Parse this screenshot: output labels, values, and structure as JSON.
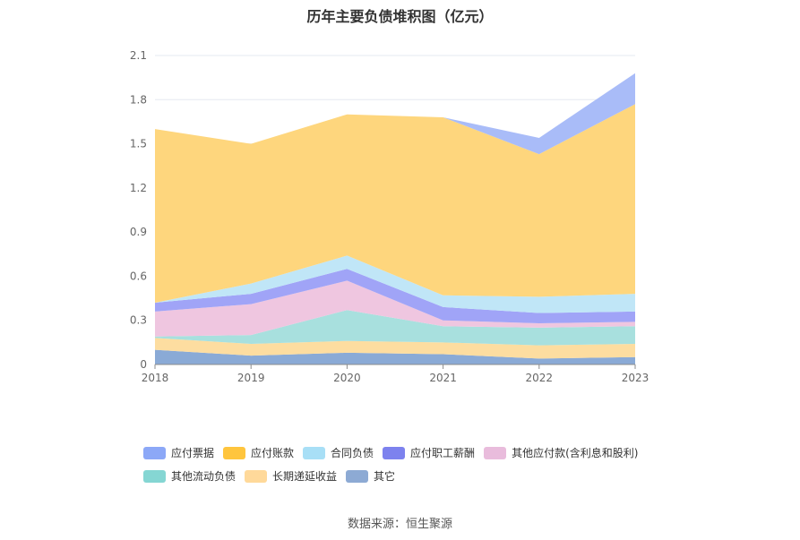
{
  "chart_data": {
    "type": "area",
    "stacked": true,
    "title": "历年主要负债堆积图（亿元）",
    "x": [
      "2018",
      "2019",
      "2020",
      "2021",
      "2022",
      "2023"
    ],
    "yticks": [
      "0",
      "0.3",
      "0.6",
      "0.9",
      "1.2",
      "1.5",
      "1.8",
      "2.1"
    ],
    "ylim": [
      0,
      2.1
    ],
    "series": [
      {
        "name": "其它",
        "color": "#8aaad6",
        "values": [
          0.1,
          0.06,
          0.08,
          0.07,
          0.04,
          0.05
        ]
      },
      {
        "name": "长期递延收益",
        "color": "#fddda0",
        "values": [
          0.08,
          0.08,
          0.08,
          0.08,
          0.09,
          0.09
        ]
      },
      {
        "name": "其他流动负债",
        "color": "#a8e0de",
        "values": [
          0.01,
          0.06,
          0.21,
          0.11,
          0.12,
          0.12
        ]
      },
      {
        "name": "其他应付款(含利息和股利)",
        "color": "#efc6e0",
        "values": [
          0.17,
          0.21,
          0.2,
          0.04,
          0.03,
          0.03
        ]
      },
      {
        "name": "应付职工薪酬",
        "color": "#a0a4f7",
        "values": [
          0.06,
          0.07,
          0.08,
          0.09,
          0.07,
          0.07
        ]
      },
      {
        "name": "合同负债",
        "color": "#c0e6f7",
        "values": [
          0.0,
          0.07,
          0.09,
          0.08,
          0.11,
          0.12
        ]
      },
      {
        "name": "应付账款",
        "color": "#fed67d",
        "values": [
          1.18,
          0.95,
          0.96,
          1.21,
          0.97,
          1.29
        ]
      },
      {
        "name": "应付票据",
        "color": "#a9bcf8",
        "values": [
          0.0,
          0.0,
          0.0,
          0.0,
          0.11,
          0.21
        ]
      }
    ],
    "legend": [
      {
        "name": "应付票据",
        "color": "#8ca8f7"
      },
      {
        "name": "应付账款",
        "color": "#ffc53d"
      },
      {
        "name": "合同负债",
        "color": "#a8dff6"
      },
      {
        "name": "应付职工薪酬",
        "color": "#7d82ee"
      },
      {
        "name": "其他应付款(含利息和股利)",
        "color": "#e9bcdc"
      },
      {
        "name": "其他流动负债",
        "color": "#85d6d3"
      },
      {
        "name": "长期递延收益",
        "color": "#ffd99a"
      },
      {
        "name": "其它",
        "color": "#8daad4"
      }
    ],
    "source": "数据来源：恒生聚源"
  }
}
